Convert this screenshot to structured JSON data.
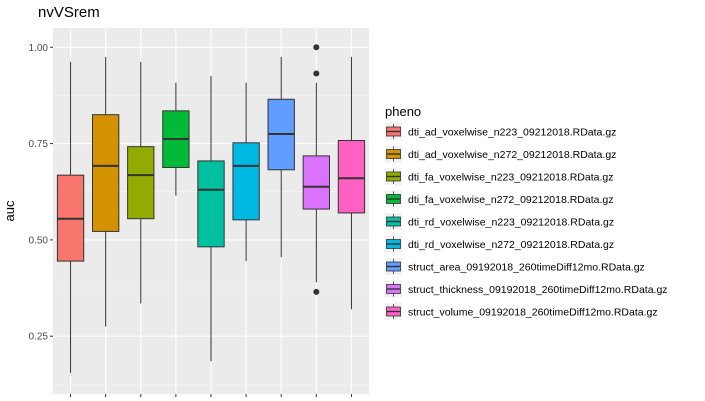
{
  "chart_data": {
    "type": "boxplot",
    "title": "nvVSrem",
    "ylabel": "auc",
    "ylim": [
      0.1,
      1.05
    ],
    "yticks": [
      0.25,
      0.5,
      0.75,
      1.0
    ],
    "ytick_labels": [
      "0.25",
      "0.50",
      "0.75",
      "1.00"
    ],
    "legend_title": "pheno",
    "legend_position": "right",
    "grid": true,
    "background": "#ebebeb",
    "series": [
      {
        "name": "dti_ad_voxelwise_n223_09212018.RData.gz",
        "color": "#F8766D",
        "min": 0.155,
        "q1": 0.445,
        "median": 0.555,
        "q3": 0.668,
        "max": 0.962,
        "outliers": []
      },
      {
        "name": "dti_ad_voxelwise_n272_09212018.RData.gz",
        "color": "#D39200",
        "min": 0.275,
        "q1": 0.522,
        "median": 0.692,
        "q3": 0.825,
        "max": 0.975,
        "outliers": []
      },
      {
        "name": "dti_fa_voxelwise_n223_09212018.RData.gz",
        "color": "#93AA00",
        "min": 0.335,
        "q1": 0.555,
        "median": 0.668,
        "q3": 0.742,
        "max": 0.962,
        "outliers": []
      },
      {
        "name": "dti_fa_voxelwise_n272_09212018.RData.gz",
        "color": "#00BA38",
        "min": 0.615,
        "q1": 0.688,
        "median": 0.762,
        "q3": 0.835,
        "max": 0.908,
        "outliers": []
      },
      {
        "name": "dti_rd_voxelwise_n223_09212018.RData.gz",
        "color": "#00C19F",
        "min": 0.185,
        "q1": 0.482,
        "median": 0.63,
        "q3": 0.705,
        "max": 0.925,
        "outliers": []
      },
      {
        "name": "dti_rd_voxelwise_n272_09212018.RData.gz",
        "color": "#00B9E3",
        "min": 0.445,
        "q1": 0.552,
        "median": 0.692,
        "q3": 0.752,
        "max": 0.908,
        "outliers": []
      },
      {
        "name": "struct_area_09192018_260timeDiff12mo.RData.gz",
        "color": "#619CFF",
        "min": 0.455,
        "q1": 0.682,
        "median": 0.775,
        "q3": 0.865,
        "max": 0.975,
        "outliers": []
      },
      {
        "name": "struct_thickness_09192018_260timeDiff12mo.RData.gz",
        "color": "#DB72FB",
        "min": 0.39,
        "q1": 0.58,
        "median": 0.638,
        "q3": 0.718,
        "max": 0.908,
        "outliers": [
          1.0,
          0.932,
          0.365
        ]
      },
      {
        "name": "struct_volume_09192018_260timeDiff12mo.RData.gz",
        "color": "#FF61C3",
        "min": 0.32,
        "q1": 0.57,
        "median": 0.66,
        "q3": 0.758,
        "max": 0.975,
        "outliers": []
      }
    ]
  }
}
